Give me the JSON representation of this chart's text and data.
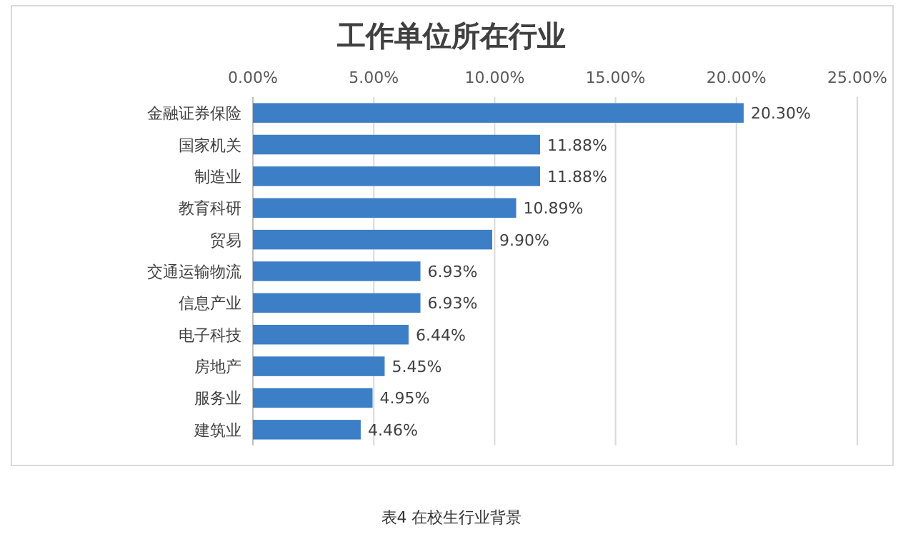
{
  "chart_data": {
    "type": "bar",
    "orientation": "horizontal",
    "title": "工作单位所在行业",
    "categories": [
      "金融证券保险",
      "国家机关",
      "制造业",
      "教育科研",
      "贸易",
      "交通运输物流",
      "信息产业",
      "电子科技",
      "房地产",
      "服务业",
      "建筑业"
    ],
    "values": [
      20.3,
      11.88,
      11.88,
      10.89,
      9.9,
      6.93,
      6.93,
      6.44,
      5.45,
      4.95,
      4.46
    ],
    "value_labels": [
      "20.30%",
      "11.88%",
      "11.88%",
      "10.89%",
      "9.90%",
      "6.93%",
      "6.93%",
      "6.44%",
      "5.45%",
      "4.95%",
      "4.46%"
    ],
    "color": "#3d7fc6",
    "xlim": [
      0,
      25
    ],
    "xticks": [
      {
        "value": 0,
        "label": "0.00%"
      },
      {
        "value": 5,
        "label": "5.00%"
      },
      {
        "value": 10,
        "label": "10.00%"
      },
      {
        "value": 15,
        "label": "15.00%"
      },
      {
        "value": 20,
        "label": "20.00%"
      },
      {
        "value": 25,
        "label": "25.00%"
      }
    ],
    "grid": "x",
    "annotations": [
      "表4   在校生行业背景"
    ]
  }
}
